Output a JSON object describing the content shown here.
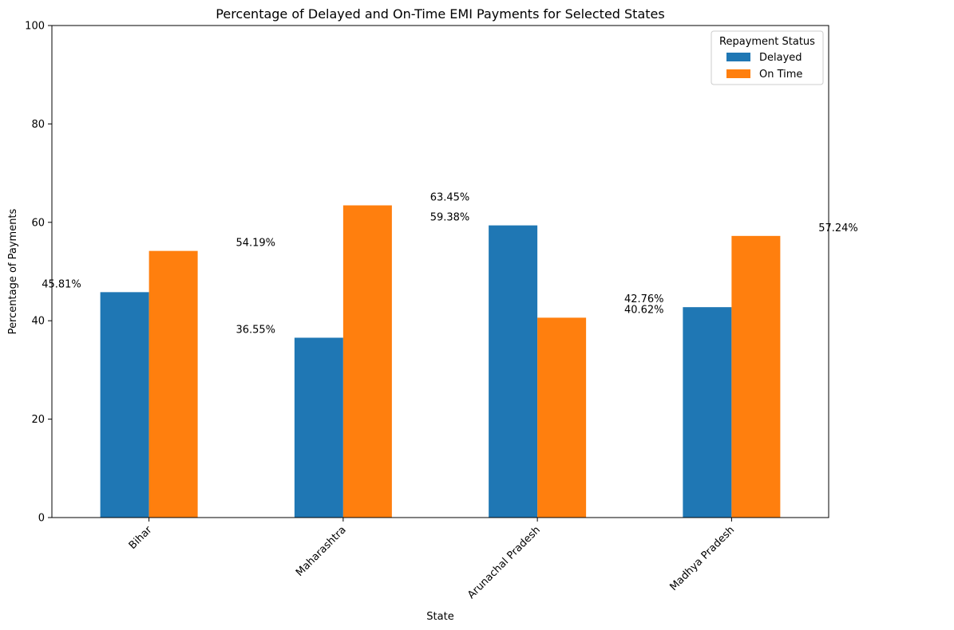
{
  "chart_data": {
    "type": "bar",
    "title": "Percentage of Delayed and On-Time EMI Payments for Selected States",
    "xlabel": "State",
    "ylabel": "Percentage of Payments",
    "ylim": [
      0,
      100
    ],
    "yticks": [
      0,
      20,
      40,
      60,
      80,
      100
    ],
    "categories": [
      "Bihar",
      "Maharashtra",
      "Arunachal Pradesh",
      "Madhya Pradesh"
    ],
    "series": [
      {
        "name": "Delayed",
        "color": "#1f77b4",
        "values": [
          45.81,
          36.55,
          59.38,
          42.76
        ]
      },
      {
        "name": "On Time",
        "color": "#ff7f0e",
        "values": [
          54.19,
          63.45,
          40.62,
          57.24
        ]
      }
    ],
    "legend": {
      "title": "Repayment Status",
      "placement": "top-right"
    },
    "grid": false,
    "annotations": [
      {
        "text": "45.81%",
        "x": 0,
        "y": 45.81
      },
      {
        "text": "54.19%",
        "x": 1,
        "y": 54.19
      },
      {
        "text": "36.55%",
        "x": 1,
        "y": 36.55
      },
      {
        "text": "63.45%",
        "x": 2,
        "y": 63.45
      },
      {
        "text": "59.38%",
        "x": 2,
        "y": 59.38
      },
      {
        "text": "42.76%",
        "x": 3,
        "y": 42.76
      },
      {
        "text": "40.62%",
        "x": 3,
        "y": 40.62
      },
      {
        "text": "57.24%",
        "x": 4,
        "y": 57.24
      }
    ]
  }
}
